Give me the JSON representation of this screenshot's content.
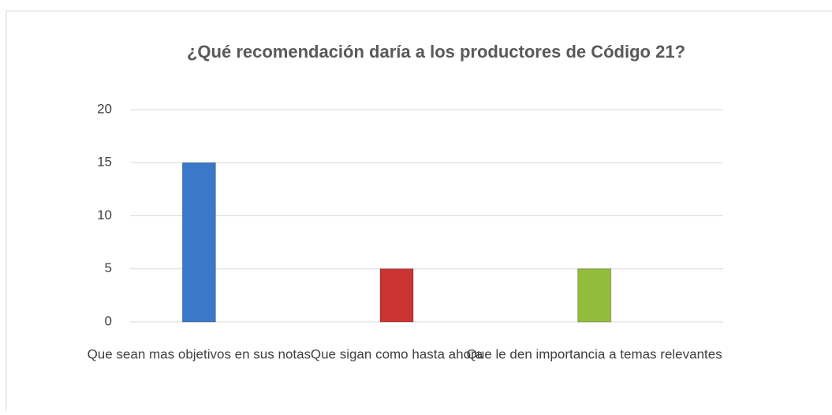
{
  "chart_data": {
    "type": "bar",
    "title": "¿Qué  recomendación  daría a los productores de  Código 21?",
    "categories": [
      "Que sean mas objetivos en sus notas",
      "Que sigan como hasta ahora",
      "Que le den importancia a temas relevantes"
    ],
    "values": [
      15,
      5,
      5
    ],
    "colors": [
      "#3b78c9",
      "#cc3333",
      "#92bc3c"
    ],
    "ylim": [
      0,
      20
    ],
    "yticks": [
      0,
      5,
      10,
      15,
      20
    ],
    "grid": true
  }
}
